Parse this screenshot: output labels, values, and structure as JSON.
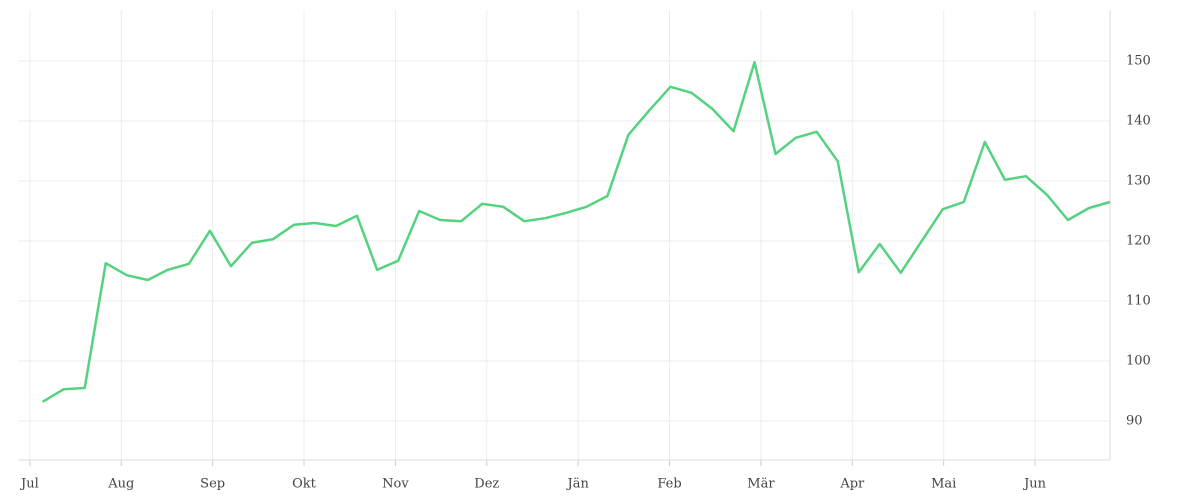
{
  "chart_data": {
    "type": "line",
    "x": [
      0.14,
      0.37,
      0.6,
      0.83,
      1.06,
      1.29,
      1.51,
      1.74,
      1.97,
      2.2,
      2.43,
      2.66,
      2.89,
      3.12,
      3.35,
      3.58,
      3.8,
      4.03,
      4.26,
      4.49,
      4.72,
      4.95,
      5.18,
      5.41,
      5.64,
      5.87,
      6.09,
      6.32,
      6.55,
      6.78,
      7.01,
      7.24,
      7.47,
      7.7,
      7.93,
      8.16,
      8.38,
      8.61,
      8.84,
      9.07,
      9.3,
      9.53,
      9.76,
      9.99,
      10.22,
      10.45,
      10.67,
      10.9,
      11.13,
      11.36,
      11.59,
      11.82
    ],
    "series": [
      {
        "color": "#55d27f",
        "values": [
          93.2,
          95.3,
          95.5,
          116.3,
          114.3,
          113.5,
          115.2,
          116.2,
          121.7,
          115.8,
          119.7,
          120.3,
          122.7,
          123.0,
          122.5,
          124.2,
          115.2,
          116.7,
          125.0,
          123.5,
          123.3,
          126.2,
          125.7,
          123.3,
          123.8,
          124.7,
          125.7,
          127.5,
          137.7,
          141.8,
          145.7,
          144.7,
          142.0,
          138.3,
          149.8,
          134.5,
          137.2,
          138.2,
          133.3,
          114.8,
          119.5,
          114.7,
          120.0,
          125.3,
          126.5,
          136.5,
          130.2,
          130.8,
          127.7,
          123.5,
          125.5,
          126.5
        ]
      }
    ],
    "xlim": [
      -0.13,
      11.82
    ],
    "xticks": [
      {
        "value": 0,
        "label": "Jul"
      },
      {
        "value": 1,
        "label": "Aug"
      },
      {
        "value": 2,
        "label": "Sep"
      },
      {
        "value": 3,
        "label": "Okt"
      },
      {
        "value": 4,
        "label": "Nov"
      },
      {
        "value": 5,
        "label": "Dez"
      },
      {
        "value": 6,
        "label": "Jän"
      },
      {
        "value": 7,
        "label": "Feb"
      },
      {
        "value": 8,
        "label": "Mär"
      },
      {
        "value": 9,
        "label": "Apr"
      },
      {
        "value": 10,
        "label": "Mai"
      },
      {
        "value": 11,
        "label": "Jun"
      }
    ],
    "ylim": [
      83.5,
      158.5
    ],
    "yticks": [
      90,
      100,
      110,
      120,
      130,
      140,
      150
    ],
    "grid": true
  }
}
